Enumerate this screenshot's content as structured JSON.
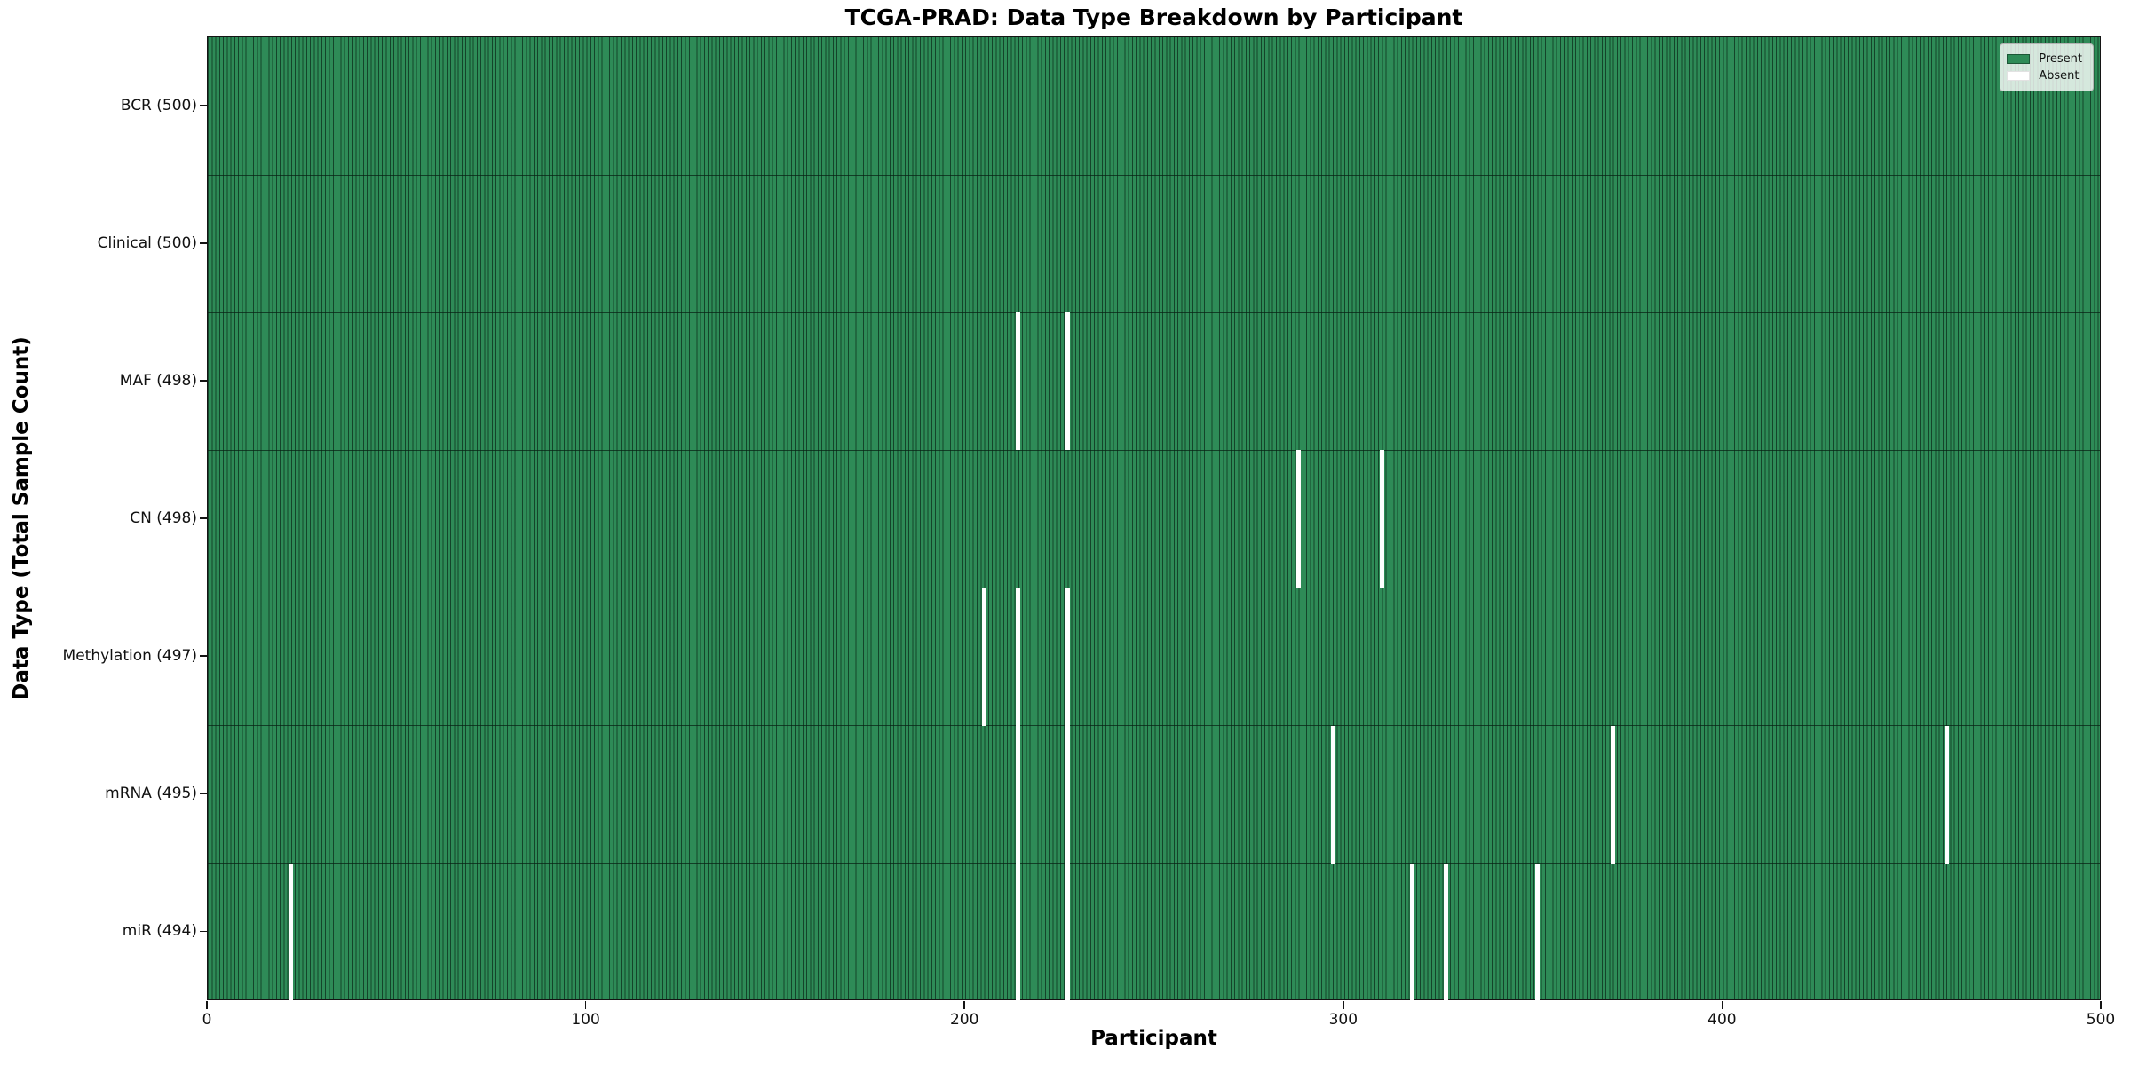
{
  "chart_data": {
    "type": "heatmap",
    "title": "TCGA-PRAD: Data Type Breakdown by Participant",
    "xlabel": "Participant",
    "ylabel": "Data Type (Total Sample Count)",
    "x_range": [
      0,
      500
    ],
    "x_ticks": [
      0,
      100,
      200,
      300,
      400,
      500
    ],
    "n_participants": 500,
    "grid": false,
    "legend_position": "upper right",
    "legend": [
      {
        "label": "Present",
        "color": "#2e8b57"
      },
      {
        "label": "Absent",
        "color": "#ffffff"
      }
    ],
    "rows": [
      {
        "label": "BCR (500)",
        "data_type": "BCR",
        "total": 500,
        "absent_participants": []
      },
      {
        "label": "Clinical (500)",
        "data_type": "Clinical",
        "total": 500,
        "absent_participants": []
      },
      {
        "label": "MAF (498)",
        "data_type": "MAF",
        "total": 498,
        "absent_participants": [
          214,
          227
        ]
      },
      {
        "label": "CN (498)",
        "data_type": "CN",
        "total": 498,
        "absent_participants": [
          288,
          310
        ]
      },
      {
        "label": "Methylation (497)",
        "data_type": "Methylation",
        "total": 497,
        "absent_participants": [
          205,
          214,
          227
        ]
      },
      {
        "label": "mRNA (495)",
        "data_type": "mRNA",
        "total": 495,
        "absent_participants": [
          214,
          227,
          297,
          371,
          459
        ]
      },
      {
        "label": "miR (494)",
        "data_type": "miR",
        "total": 494,
        "absent_participants": [
          22,
          214,
          227,
          318,
          327,
          351
        ]
      }
    ],
    "colors": {
      "present_fill": "#2e8b57",
      "bar_edge": "#14482c",
      "absent_fill": "#ffffff",
      "background": "#ffffff"
    }
  }
}
